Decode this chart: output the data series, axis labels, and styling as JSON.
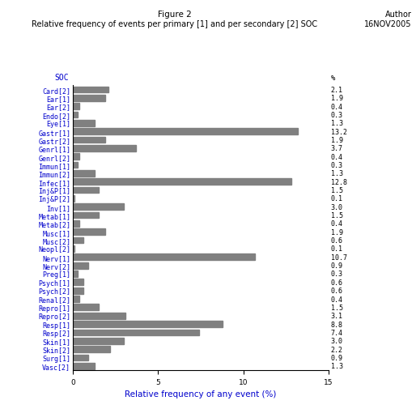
{
  "title_line1": "Figure 2",
  "title_line2": "Relative frequency of events per primary [1] and per secondary [2] SOC",
  "author_line1": "Author",
  "author_line2": "16NOV2005",
  "xlabel": "Relative frequency of any event (%)",
  "ylabel": "SOC",
  "percent_label": "%",
  "xlim": [
    0,
    15
  ],
  "categories": [
    "Card[2]",
    "Ear[1]",
    "Ear[2]",
    "Endo[2]",
    "Eye[1]",
    "Gastr[1]",
    "Gastr[2]",
    "Genrl[1]",
    "Genrl[2]",
    "Immun[1]",
    "Immun[2]",
    "Infec[1]",
    "Inj&P[1]",
    "Inj&P[2]",
    "Inv[1]",
    "Metab[1]",
    "Metab[2]",
    "Musc[1]",
    "Musc[2]",
    "Neopl[2]",
    "Nerv[1]",
    "Nerv[2]",
    "Preg[1]",
    "Psych[1]",
    "Psych[2]",
    "Renal[2]",
    "Repro[1]",
    "Repro[2]",
    "Resp[1]",
    "Resp[2]",
    "Skin[1]",
    "Skin[2]",
    "Surg[1]",
    "Vasc[2]"
  ],
  "values": [
    2.1,
    1.9,
    0.4,
    0.3,
    1.3,
    13.2,
    1.9,
    3.7,
    0.4,
    0.3,
    1.3,
    12.8,
    1.5,
    0.1,
    3.0,
    1.5,
    0.4,
    1.9,
    0.6,
    0.1,
    10.7,
    0.9,
    0.3,
    0.6,
    0.6,
    0.4,
    1.5,
    3.1,
    8.8,
    7.4,
    3.0,
    2.2,
    0.9,
    1.3
  ],
  "percent_values": [
    "2.1",
    "1.9",
    "0.4",
    "0.3",
    "1.3",
    "13.2",
    "1.9",
    "3.7",
    "0.4",
    "0.3",
    "1.3",
    "12.8",
    "1.5",
    "0.1",
    "3.0",
    "1.5",
    "0.4",
    "1.9",
    "0.6",
    "0.1",
    "10.7",
    "0.9",
    "0.3",
    "0.6",
    "0.6",
    "0.4",
    "1.5",
    "3.1",
    "8.8",
    "7.4",
    "3.0",
    "2.2",
    "0.9",
    "1.3"
  ],
  "bar_color": "#808080",
  "label_color": "#0000CC",
  "axis_label_color": "#0000CC",
  "title_color": "#000000",
  "bg_color": "#FFFFFF",
  "bar_height": 0.75,
  "title_fontsize": 7.5,
  "label_fontsize": 6.0,
  "tick_fontsize": 6.5,
  "axis_title_fontsize": 7.5
}
